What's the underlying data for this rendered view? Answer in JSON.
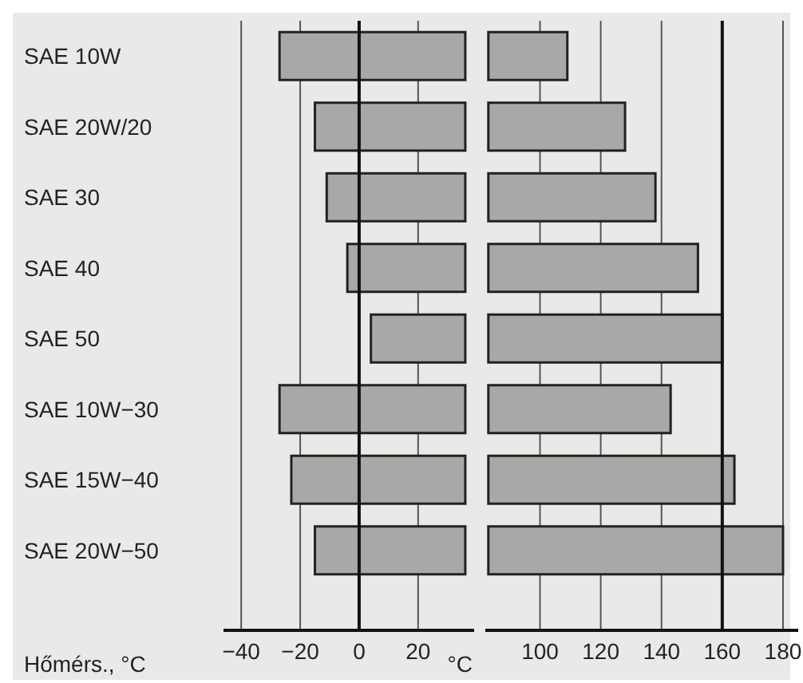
{
  "chart_data": [
    {
      "type": "bar",
      "orientation": "horizontal",
      "xlabel": "Hőmérs., °C",
      "categories": [
        "SAE 10W",
        "SAE 20W/20",
        "SAE 30",
        "SAE 40",
        "SAE 50",
        "SAE 10W−30",
        "SAE 15W−40",
        "SAE 20W−50"
      ],
      "base": [
        -27,
        -15,
        -11,
        -4,
        4,
        -27,
        -23,
        -15
      ],
      "values": [
        63,
        51,
        47,
        40,
        32,
        63,
        59,
        51
      ],
      "color": "#a8a8a6",
      "xlim": [
        -46,
        39
      ],
      "xticks": [
        -40,
        -20,
        0,
        20
      ],
      "grid": "x",
      "ref_lines": [
        {
          "axis": "x",
          "value": 0,
          "color": "#111111"
        }
      ]
    },
    {
      "type": "bar",
      "orientation": "horizontal",
      "xlabel": "°C",
      "tick_labels": "x",
      "categories": [
        null,
        null,
        null,
        null,
        null,
        null,
        null,
        null
      ],
      "base": [
        83,
        83,
        83,
        83,
        83,
        83,
        83,
        83
      ],
      "values": [
        26,
        45,
        55,
        69,
        77,
        60,
        81,
        97
      ],
      "color": "#a8a8a6",
      "xlim": [
        82,
        185
      ],
      "xticks": [
        100,
        120,
        140,
        160,
        180
      ],
      "grid": "x",
      "ref_lines": [
        {
          "axis": "x",
          "value": 160,
          "color": "#111111"
        }
      ]
    }
  ]
}
